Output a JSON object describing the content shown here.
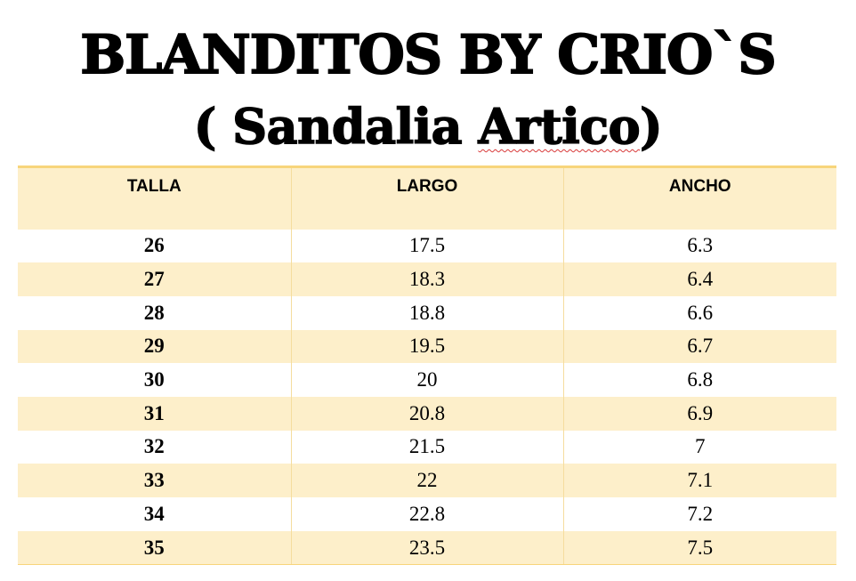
{
  "title": {
    "line1": "BLANDITOS BY CRIO`S",
    "line2_prefix": "( Sandalia ",
    "line2_flagged": "Artico",
    "line2_suffix": ")"
  },
  "table": {
    "headers": [
      "TALLA",
      "LARGO",
      "ANCHO"
    ],
    "rows": [
      [
        "26",
        "17.5",
        "6.3"
      ],
      [
        "27",
        "18.3",
        "6.4"
      ],
      [
        "28",
        "18.8",
        "6.6"
      ],
      [
        "29",
        "19.5",
        "6.7"
      ],
      [
        "30",
        "20",
        "6.8"
      ],
      [
        "31",
        "20.8",
        "6.9"
      ],
      [
        "32",
        "21.5",
        "7"
      ],
      [
        "33",
        "22",
        "7.1"
      ],
      [
        "34",
        "22.8",
        "7.2"
      ],
      [
        "35",
        "23.5",
        "7.5"
      ]
    ]
  },
  "colors": {
    "band": "#fdefca",
    "rule": "#f7d57b",
    "spellcheck": "#d83a3a"
  }
}
